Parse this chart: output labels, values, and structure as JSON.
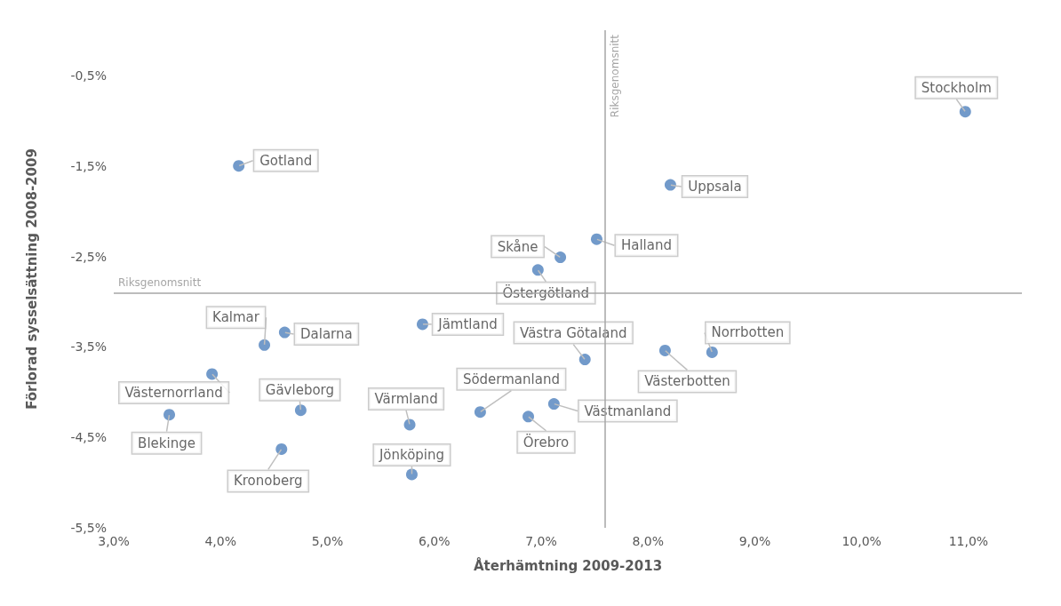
{
  "chart_data": {
    "type": "scatter",
    "xlabel": "Återhämtning 2009-2013",
    "ylabel": "Förlorad sysselsättning 2008-2009",
    "x": [
      10.97,
      4.17,
      8.21,
      7.52,
      7.18,
      6.97,
      5.89,
      4.41,
      4.6,
      7.41,
      8.16,
      8.6,
      3.92,
      3.52,
      4.75,
      5.77,
      6.43,
      7.12,
      6.88,
      4.57,
      5.79
    ],
    "values": [
      -0.9,
      -1.5,
      -1.71,
      -2.31,
      -2.51,
      -2.65,
      -3.25,
      -3.48,
      -3.34,
      -3.64,
      -3.54,
      -3.56,
      -3.8,
      -4.25,
      -4.2,
      -4.36,
      -4.22,
      -4.13,
      -4.27,
      -4.63,
      -4.91
    ],
    "color": "#4f81bd",
    "marker": "circle",
    "xlim": [
      3,
      11.5
    ],
    "xticks": [
      {
        "value": 3,
        "label": "3,0%"
      },
      {
        "value": 4,
        "label": "4,0%"
      },
      {
        "value": 5,
        "label": "5,0%"
      },
      {
        "value": 6,
        "label": "6,0%"
      },
      {
        "value": 7,
        "label": "7,0%"
      },
      {
        "value": 8,
        "label": "8,0%"
      },
      {
        "value": 9,
        "label": "9,0%"
      },
      {
        "value": 10,
        "label": "10,0%"
      },
      {
        "value": 11,
        "label": "11,0%"
      }
    ],
    "ylim": [
      -5.5,
      0
    ],
    "yticks": [
      {
        "value": -5.5,
        "label": "-5,5%"
      },
      {
        "value": -4.5,
        "label": "-4,5%"
      },
      {
        "value": -3.5,
        "label": "-3,5%"
      },
      {
        "value": -2.5,
        "label": "-2,5%"
      },
      {
        "value": -1.5,
        "label": "-1,5%"
      },
      {
        "value": -0.5,
        "label": "-0,5%"
      }
    ],
    "ref_lines": [
      {
        "axis": "x",
        "value": 7.6,
        "label": "Riksgenomsnitt",
        "color": "#a6a6a6"
      },
      {
        "axis": "y",
        "value": -2.9,
        "label": "Riksgenomsnitt",
        "color": "#a6a6a6"
      }
    ],
    "annotations": [
      {
        "text": "Stockholm",
        "x": 10.97,
        "y": -0.9
      },
      {
        "text": "Gotland",
        "x": 4.17,
        "y": -1.5
      },
      {
        "text": "Uppsala",
        "x": 8.21,
        "y": -1.71
      },
      {
        "text": "Halland",
        "x": 7.52,
        "y": -2.31
      },
      {
        "text": "Skåne",
        "x": 7.18,
        "y": -2.51
      },
      {
        "text": "Östergötland",
        "x": 6.97,
        "y": -2.65
      },
      {
        "text": "Jämtland",
        "x": 5.89,
        "y": -3.25
      },
      {
        "text": "Kalmar",
        "x": 4.41,
        "y": -3.48
      },
      {
        "text": "Dalarna",
        "x": 4.6,
        "y": -3.34
      },
      {
        "text": "Västra Götaland",
        "x": 7.41,
        "y": -3.64
      },
      {
        "text": "Västerbotten",
        "x": 8.16,
        "y": -3.54
      },
      {
        "text": "Norrbotten",
        "x": 8.6,
        "y": -3.56
      },
      {
        "text": "Västernorrland",
        "x": 3.92,
        "y": -3.8
      },
      {
        "text": "Blekinge",
        "x": 3.52,
        "y": -4.25
      },
      {
        "text": "Gävleborg",
        "x": 4.75,
        "y": -4.2
      },
      {
        "text": "Värmland",
        "x": 5.77,
        "y": -4.36
      },
      {
        "text": "Södermanland",
        "x": 6.43,
        "y": -4.22
      },
      {
        "text": "Västmanland",
        "x": 7.12,
        "y": -4.13
      },
      {
        "text": "Örebro",
        "x": 6.88,
        "y": -4.27
      },
      {
        "text": "Kronoberg",
        "x": 4.57,
        "y": -4.63
      },
      {
        "text": "Jönköping",
        "x": 5.79,
        "y": -4.91
      }
    ]
  }
}
